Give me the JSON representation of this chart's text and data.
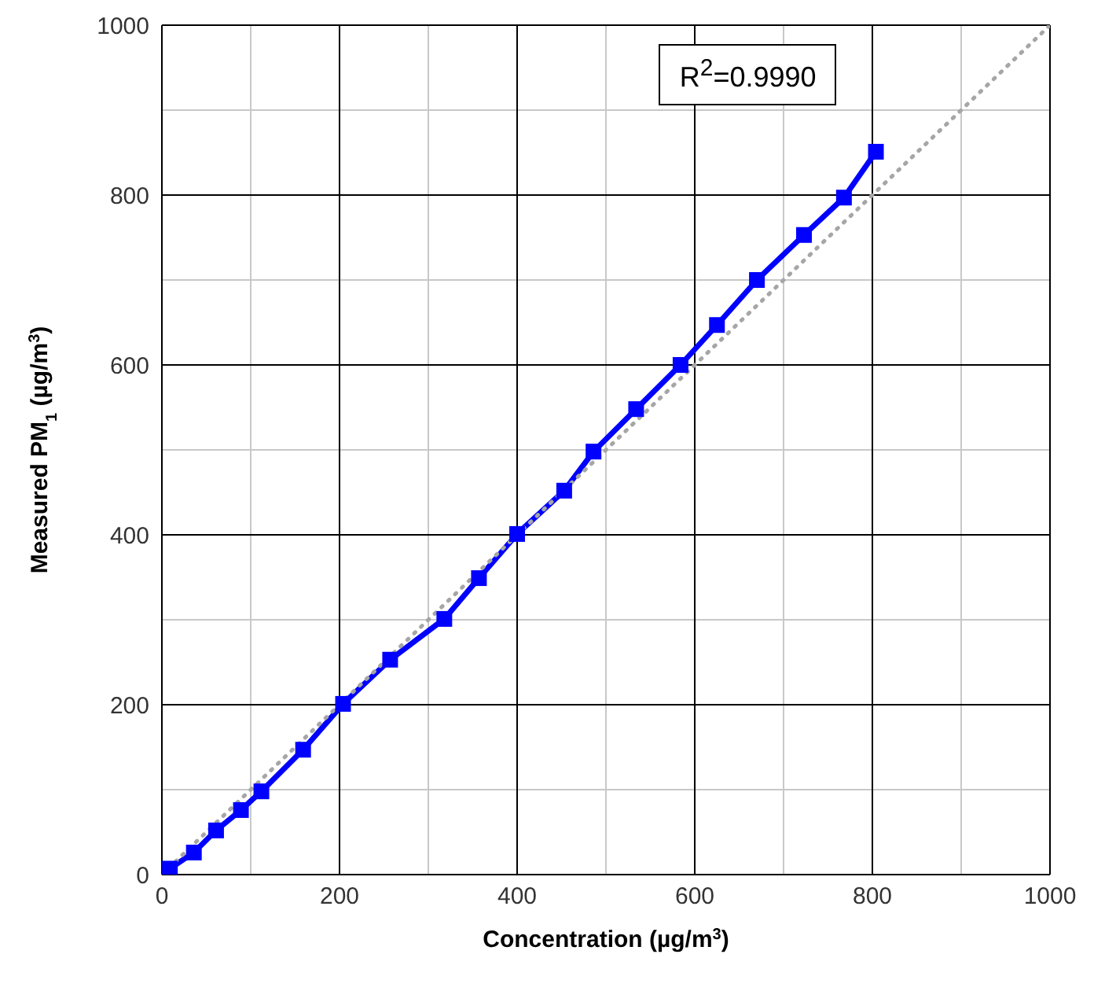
{
  "chart_data": {
    "type": "line",
    "xlabel": "Concentration (µg/m$^{3}$)",
    "ylabel": "Measured PM$_{1}$ (µg/m$^{3}$)",
    "annotations": [
      "R$^{2}$=0.9990"
    ],
    "x": [
      9,
      36,
      61,
      89,
      112,
      159,
      204,
      257,
      318,
      357,
      400,
      453,
      486,
      534,
      584,
      625,
      670,
      723,
      768,
      804
    ],
    "series": [
      {
        "color": "#0000ff",
        "marker": "square",
        "values": [
          7,
          26,
          52,
          76,
          98,
          147,
          201,
          253,
          301,
          349,
          401,
          452,
          498,
          548,
          600,
          647,
          700,
          753,
          797,
          851
        ]
      },
      {
        "type": "line",
        "color": "#a6a6a6",
        "line_style": "dotted",
        "marker": "none",
        "x": [
          0,
          1000
        ],
        "values": [
          0,
          1000
        ]
      }
    ],
    "xlim": [
      0,
      1000
    ],
    "ylim": [
      0,
      1000
    ],
    "xticks": [
      0,
      200,
      400,
      600,
      800,
      1000
    ],
    "yticks": [
      0,
      200,
      400,
      600,
      800,
      1000
    ],
    "grid": true
  }
}
